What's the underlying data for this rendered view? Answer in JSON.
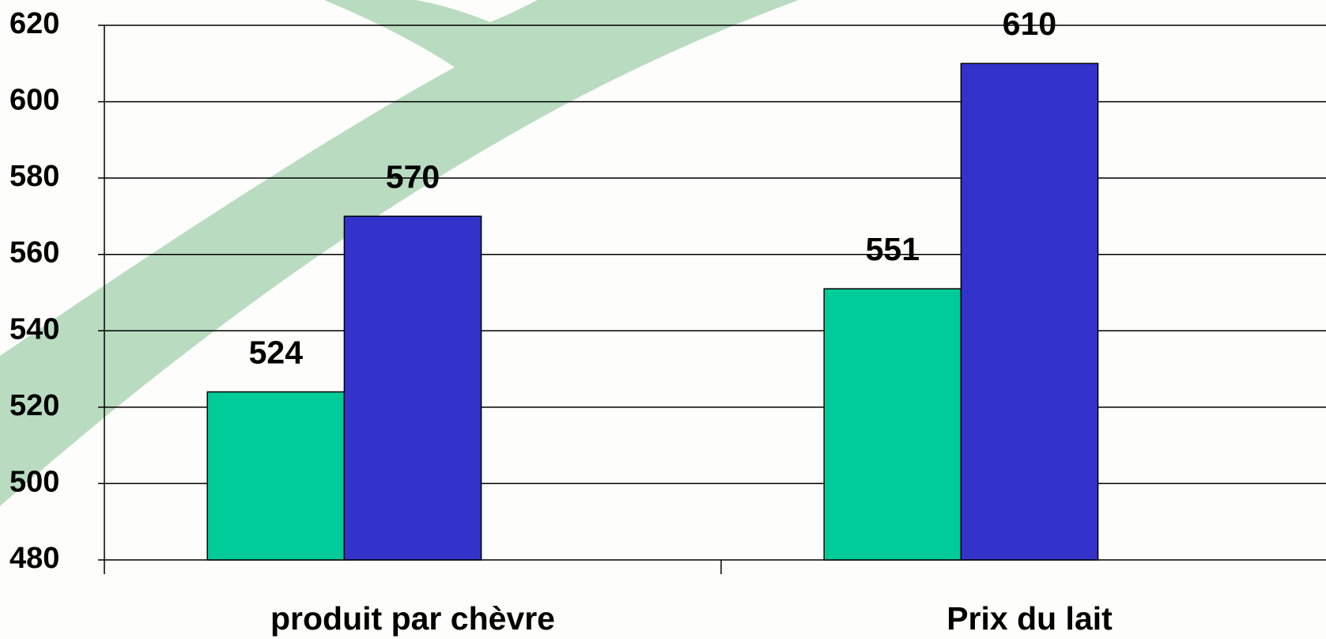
{
  "chart_data": {
    "type": "bar",
    "categories": [
      "produit par chèvre",
      "Prix du lait"
    ],
    "series": [
      {
        "color": "#00cc99",
        "values": [
          524,
          551
        ]
      },
      {
        "color": "#3333cc",
        "values": [
          570,
          610
        ]
      }
    ],
    "ylim": [
      480,
      620
    ],
    "yticks": [
      480,
      500,
      520,
      540,
      560,
      580,
      600,
      620
    ],
    "grid": true
  }
}
